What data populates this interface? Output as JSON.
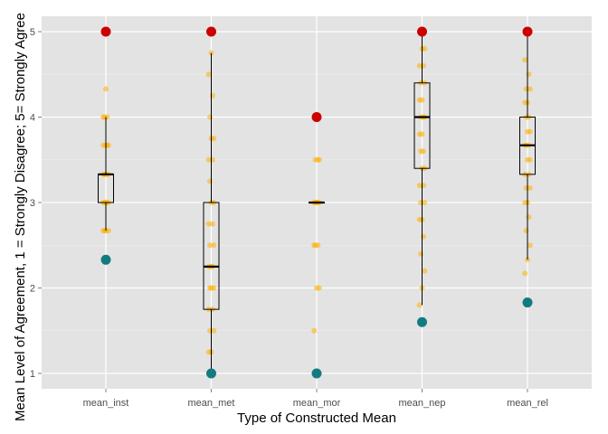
{
  "chart_data": {
    "type": "boxplot",
    "title": "",
    "xlabel": "Type of Constructed Mean",
    "ylabel": "Mean Level of Agreement, 1 = Strongly Disagree; 5= Strongly Agree",
    "categories": [
      "mean_inst",
      "mean_met",
      "mean_mor",
      "mean_nep",
      "mean_rel"
    ],
    "ylim": [
      0.82,
      5.18
    ],
    "yticks": [
      1,
      2,
      3,
      4,
      5
    ],
    "grid": true,
    "colors": {
      "panel": "#e3e3e3",
      "grid_major": "#ffffff",
      "grid_minor": "#f0f0f0",
      "points": "#ffb000",
      "max_marker": "#cc0000",
      "min_marker": "#137b80",
      "box": "#000000"
    },
    "boxes": [
      {
        "category": "mean_inst",
        "whisker_low": 2.67,
        "q1": 3.0,
        "median": 3.33,
        "q3": 3.33,
        "whisker_high": 4.0,
        "min": 2.33,
        "max": 5.0
      },
      {
        "category": "mean_met",
        "whisker_low": 1.0,
        "q1": 1.75,
        "median": 2.25,
        "q3": 3.0,
        "whisker_high": 4.75,
        "min": 1.0,
        "max": 5.0
      },
      {
        "category": "mean_mor",
        "whisker_low": 3.0,
        "q1": 3.0,
        "median": 3.0,
        "q3": 3.0,
        "whisker_high": 3.0,
        "min": 1.0,
        "max": 4.0
      },
      {
        "category": "mean_nep",
        "whisker_low": 1.8,
        "q1": 3.4,
        "median": 4.0,
        "q3": 4.4,
        "whisker_high": 5.0,
        "min": 1.6,
        "max": 5.0
      },
      {
        "category": "mean_rel",
        "whisker_low": 2.33,
        "q1": 3.33,
        "median": 3.67,
        "q3": 4.0,
        "whisker_high": 5.0,
        "min": 1.83,
        "max": 5.0
      }
    ],
    "jitter_values": [
      [
        2.67,
        2.67,
        2.67,
        2.67,
        3.0,
        3.0,
        3.0,
        3.0,
        3.0,
        3.33,
        3.33,
        3.33,
        3.33,
        3.33,
        3.67,
        3.67,
        3.67,
        3.67,
        4.0,
        4.0,
        4.0,
        4.33
      ],
      [
        1.25,
        1.25,
        1.5,
        1.5,
        1.75,
        1.75,
        2.0,
        2.0,
        2.0,
        2.25,
        2.25,
        2.25,
        2.5,
        2.5,
        2.75,
        2.75,
        3.0,
        3.0,
        3.25,
        3.5,
        3.5,
        3.75,
        3.75,
        4.0,
        4.25,
        4.5,
        4.75
      ],
      [
        1.5,
        2.0,
        2.0,
        2.5,
        2.5,
        2.5,
        3.0,
        3.0,
        3.0,
        3.0,
        3.0,
        3.0,
        3.5,
        3.5,
        3.5
      ],
      [
        1.8,
        2.0,
        2.2,
        2.4,
        2.6,
        2.8,
        2.8,
        3.0,
        3.0,
        3.2,
        3.2,
        3.4,
        3.4,
        3.6,
        3.6,
        3.8,
        3.8,
        4.0,
        4.0,
        4.0,
        4.2,
        4.2,
        4.4,
        4.4,
        4.6,
        4.6,
        4.8,
        4.8
      ],
      [
        2.17,
        2.33,
        2.5,
        2.67,
        2.83,
        3.0,
        3.0,
        3.17,
        3.17,
        3.33,
        3.33,
        3.5,
        3.5,
        3.67,
        3.67,
        3.67,
        3.83,
        3.83,
        4.0,
        4.0,
        4.17,
        4.17,
        4.33,
        4.33,
        4.5,
        4.67
      ]
    ]
  }
}
